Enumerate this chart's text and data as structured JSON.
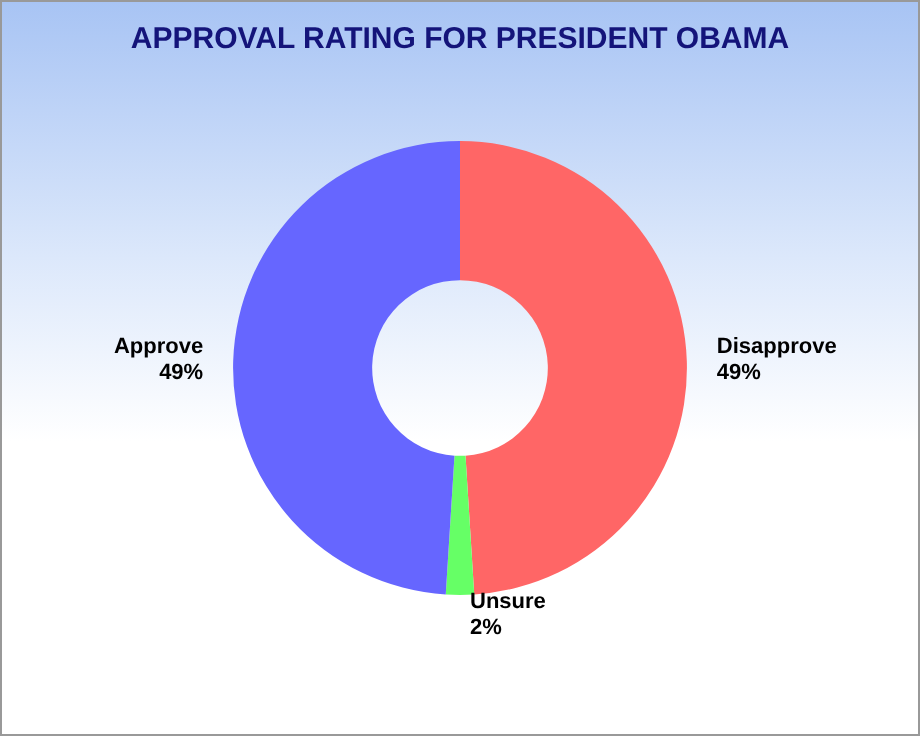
{
  "chart_data": {
    "type": "donut",
    "title": "APPROVAL RATING FOR PRESIDENT OBAMA",
    "categories": [
      "Disapprove",
      "Unsure",
      "Approve"
    ],
    "values": [
      49,
      2,
      49
    ],
    "value_labels": [
      "49%",
      "2%",
      "49%"
    ],
    "colors": [
      "#ff6666",
      "#66ff66",
      "#6666ff"
    ]
  }
}
